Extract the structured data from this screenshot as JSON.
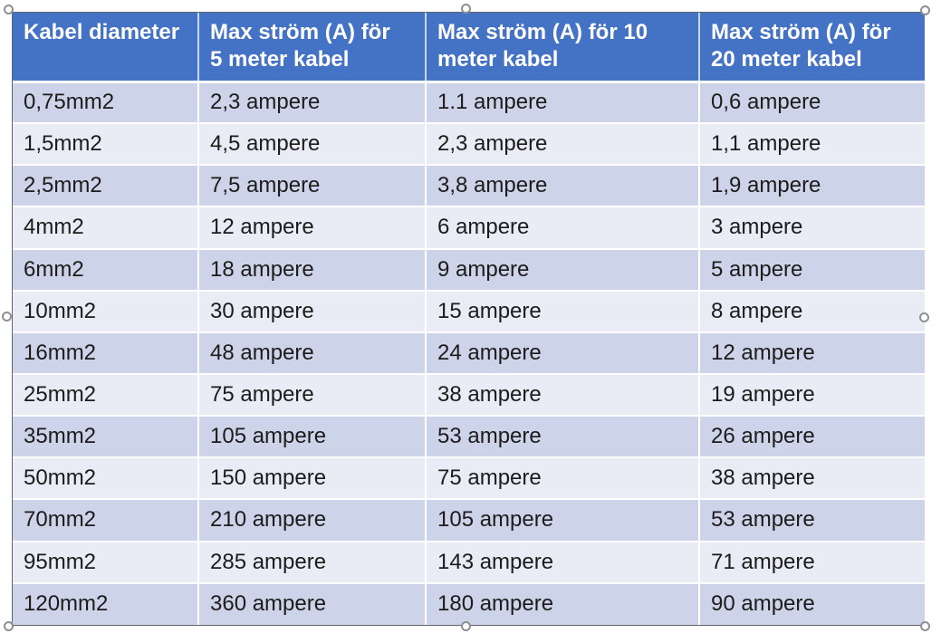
{
  "colors": {
    "header_bg": "#4472C4",
    "header_text": "#FFFFFF",
    "row_band_dark": "#CDD3E8",
    "row_band_light": "#E9EBF5",
    "body_text": "#1C1C1C",
    "grid_line": "#FFFFFF",
    "table_border": "#62656D",
    "selection_handle_stroke": "#8F8F94"
  },
  "table": {
    "headers": [
      [
        "Kabel diameter"
      ],
      [
        "Max ström (A) för",
        "5 meter kabel"
      ],
      [
        "Max ström (A) för 10",
        "meter kabel"
      ],
      [
        "Max ström (A) för",
        "20 meter kabel"
      ]
    ],
    "headers_full": [
      "Kabel diameter",
      "Max ström (A) för 5 meter kabel",
      "Max ström (A) för 10 meter kabel",
      "Max ström (A) för 20 meter kabel"
    ],
    "rows": [
      [
        "0,75mm2",
        "2,3 ampere",
        "1.1 ampere",
        "0,6 ampere"
      ],
      [
        "1,5mm2",
        "4,5 ampere",
        "2,3 ampere",
        "1,1 ampere"
      ],
      [
        "2,5mm2",
        "7,5 ampere",
        "3,8 ampere",
        "1,9 ampere"
      ],
      [
        "4mm2",
        "12 ampere",
        "6 ampere",
        "3 ampere"
      ],
      [
        "6mm2",
        "18 ampere",
        "9 ampere",
        "5 ampere"
      ],
      [
        "10mm2",
        "30 ampere",
        "15 ampere",
        "8 ampere"
      ],
      [
        "16mm2",
        "48 ampere",
        "24 ampere",
        "12 ampere"
      ],
      [
        "25mm2",
        "75 ampere",
        "38 ampere",
        "19 ampere"
      ],
      [
        "35mm2",
        "105 ampere",
        "53 ampere",
        "26 ampere"
      ],
      [
        "50mm2",
        "150 ampere",
        "75 ampere",
        "38 ampere"
      ],
      [
        "70mm2",
        "210 ampere",
        "105 ampere",
        "53 ampere"
      ],
      [
        "95mm2",
        "285 ampere",
        "143 ampere",
        "71 ampere"
      ],
      [
        "120mm2",
        "360 ampere",
        "180 ampere",
        "90 ampere"
      ]
    ]
  }
}
